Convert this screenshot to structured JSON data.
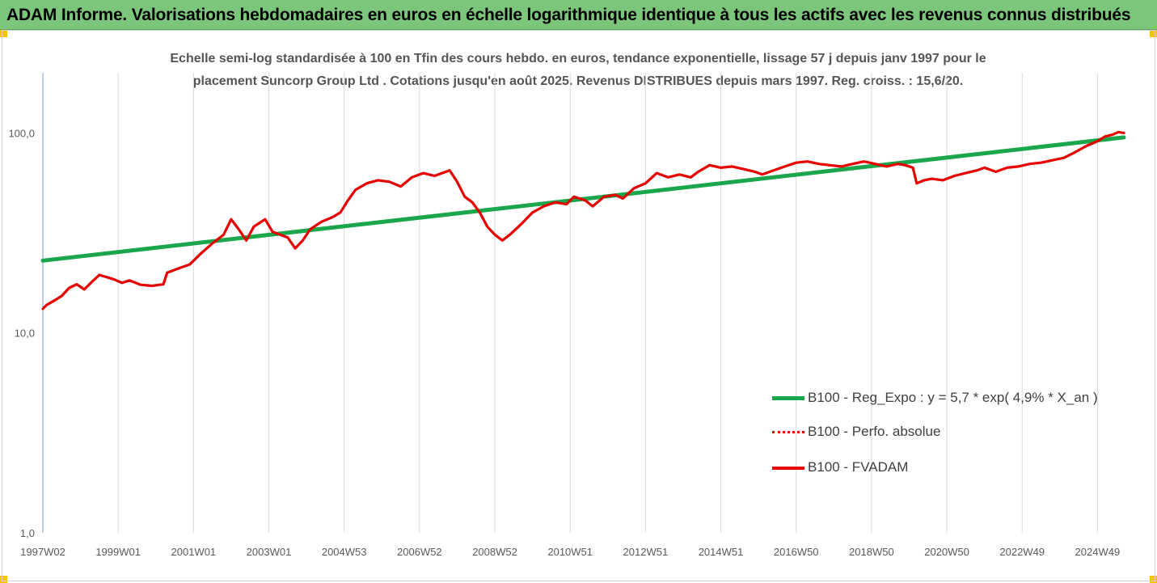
{
  "banner": {
    "title": "ADAM Informe. Valorisations hebdomadaires en euros en échelle logarithmique identique à tous les actifs avec les revenus connus distribués"
  },
  "colors": {
    "banner_bg": "#7bc67a",
    "corner_accent": "#f5c400",
    "trend_green": "#1aa64a",
    "fvadam_red": "#e60000",
    "grid": "#d9d9d9"
  },
  "chart_data": {
    "type": "line",
    "title_line1": "Echelle semi-log standardisée à 100 en Tfin des cours hebdo. en euros, tendance exponentielle, lissage 57 j depuis janv 1997 pour le",
    "title_line2": "placement Suncorp Group Ltd . Cotations jusqu'en août 2025. Revenus DISTRIBUES depuis mars 1997. Reg. croiss. : 15,6/20.",
    "y_scale": "log",
    "ylim": [
      1,
      200
    ],
    "y_ticks": [
      {
        "value": 1,
        "label": "1,0"
      },
      {
        "value": 10,
        "label": "10,0"
      },
      {
        "value": 100,
        "label": "100,0"
      }
    ],
    "xlim": [
      1997.0,
      2025.7
    ],
    "x_ticks": [
      {
        "x": 1997.0,
        "label": "1997W02"
      },
      {
        "x": 1999.0,
        "label": "1999W01"
      },
      {
        "x": 2001.0,
        "label": "2001W01"
      },
      {
        "x": 2003.0,
        "label": "2003W01"
      },
      {
        "x": 2005.0,
        "label": "2004W53"
      },
      {
        "x": 2007.0,
        "label": "2006W52"
      },
      {
        "x": 2009.0,
        "label": "2008W52"
      },
      {
        "x": 2011.0,
        "label": "2010W51"
      },
      {
        "x": 2013.0,
        "label": "2012W51"
      },
      {
        "x": 2015.0,
        "label": "2014W51"
      },
      {
        "x": 2017.0,
        "label": "2016W50"
      },
      {
        "x": 2019.0,
        "label": "2018W50"
      },
      {
        "x": 2021.0,
        "label": "2020W50"
      },
      {
        "x": 2023.0,
        "label": "2022W49"
      },
      {
        "x": 2025.0,
        "label": "2024W49"
      }
    ],
    "grid": "vertical",
    "legend_position": "bottom-right",
    "series": [
      {
        "name": "B100 - Reg_Expo : y = 5,7 * exp( 4,9% *  X_an )",
        "style": "solid-thick",
        "color": "#1aa64a",
        "points": [
          [
            1997.0,
            23.0
          ],
          [
            2025.7,
            95.0
          ]
        ]
      },
      {
        "name": "B100 - Perfo. absolue",
        "style": "dotted",
        "color": "#e60000",
        "points": []
      },
      {
        "name": "B100 - FVADAM",
        "style": "solid",
        "color": "#e60000",
        "points": [
          [
            1997.0,
            13.2
          ],
          [
            1997.1,
            13.8
          ],
          [
            1997.3,
            14.5
          ],
          [
            1997.5,
            15.3
          ],
          [
            1997.7,
            16.8
          ],
          [
            1997.9,
            17.5
          ],
          [
            1998.1,
            16.5
          ],
          [
            1998.3,
            18.0
          ],
          [
            1998.5,
            19.5
          ],
          [
            1998.7,
            19.0
          ],
          [
            1998.9,
            18.5
          ],
          [
            1999.1,
            17.8
          ],
          [
            1999.3,
            18.3
          ],
          [
            1999.6,
            17.4
          ],
          [
            1999.9,
            17.2
          ],
          [
            2000.2,
            17.5
          ],
          [
            2000.3,
            20.0
          ],
          [
            2000.6,
            21.0
          ],
          [
            2000.9,
            22.0
          ],
          [
            2001.2,
            25.0
          ],
          [
            2001.5,
            28.0
          ],
          [
            2001.8,
            31.0
          ],
          [
            2002.0,
            37.0
          ],
          [
            2002.2,
            33.0
          ],
          [
            2002.4,
            29.0
          ],
          [
            2002.6,
            34.0
          ],
          [
            2002.9,
            37.0
          ],
          [
            2003.1,
            32.0
          ],
          [
            2003.3,
            31.0
          ],
          [
            2003.5,
            30.0
          ],
          [
            2003.7,
            26.5
          ],
          [
            2003.9,
            29.0
          ],
          [
            2004.1,
            33.0
          ],
          [
            2004.4,
            36.0
          ],
          [
            2004.7,
            38.0
          ],
          [
            2004.9,
            40.0
          ],
          [
            2005.1,
            46.0
          ],
          [
            2005.3,
            52.0
          ],
          [
            2005.6,
            56.0
          ],
          [
            2005.9,
            58.0
          ],
          [
            2006.2,
            57.0
          ],
          [
            2006.5,
            54.0
          ],
          [
            2006.8,
            60.0
          ],
          [
            2007.1,
            63.0
          ],
          [
            2007.4,
            61.0
          ],
          [
            2007.6,
            63.0
          ],
          [
            2007.8,
            65.0
          ],
          [
            2008.0,
            57.0
          ],
          [
            2008.2,
            48.0
          ],
          [
            2008.4,
            45.0
          ],
          [
            2008.6,
            40.0
          ],
          [
            2008.8,
            34.0
          ],
          [
            2009.0,
            31.0
          ],
          [
            2009.2,
            29.0
          ],
          [
            2009.4,
            31.0
          ],
          [
            2009.7,
            35.0
          ],
          [
            2010.0,
            40.0
          ],
          [
            2010.3,
            43.0
          ],
          [
            2010.6,
            45.0
          ],
          [
            2010.9,
            44.0
          ],
          [
            2011.1,
            48.0
          ],
          [
            2011.4,
            46.0
          ],
          [
            2011.6,
            43.0
          ],
          [
            2011.9,
            48.0
          ],
          [
            2012.2,
            49.0
          ],
          [
            2012.4,
            47.0
          ],
          [
            2012.7,
            53.0
          ],
          [
            2013.0,
            56.0
          ],
          [
            2013.3,
            63.0
          ],
          [
            2013.6,
            60.0
          ],
          [
            2013.9,
            62.0
          ],
          [
            2014.2,
            60.0
          ],
          [
            2014.4,
            64.0
          ],
          [
            2014.7,
            69.0
          ],
          [
            2015.0,
            67.0
          ],
          [
            2015.3,
            68.0
          ],
          [
            2015.6,
            66.0
          ],
          [
            2015.9,
            64.0
          ],
          [
            2016.1,
            62.0
          ],
          [
            2016.4,
            65.0
          ],
          [
            2016.7,
            68.0
          ],
          [
            2017.0,
            71.0
          ],
          [
            2017.3,
            72.0
          ],
          [
            2017.6,
            70.0
          ],
          [
            2017.9,
            69.0
          ],
          [
            2018.2,
            68.0
          ],
          [
            2018.5,
            70.0
          ],
          [
            2018.8,
            72.0
          ],
          [
            2019.1,
            70.0
          ],
          [
            2019.4,
            68.0
          ],
          [
            2019.7,
            70.0
          ],
          [
            2019.9,
            69.0
          ],
          [
            2020.1,
            67.0
          ],
          [
            2020.2,
            56.0
          ],
          [
            2020.4,
            58.0
          ],
          [
            2020.6,
            59.0
          ],
          [
            2020.9,
            58.0
          ],
          [
            2021.2,
            61.0
          ],
          [
            2021.5,
            63.0
          ],
          [
            2021.8,
            65.0
          ],
          [
            2022.0,
            67.0
          ],
          [
            2022.3,
            64.0
          ],
          [
            2022.6,
            67.0
          ],
          [
            2022.9,
            68.0
          ],
          [
            2023.2,
            70.0
          ],
          [
            2023.5,
            71.0
          ],
          [
            2023.8,
            73.0
          ],
          [
            2024.1,
            75.0
          ],
          [
            2024.4,
            80.0
          ],
          [
            2024.7,
            86.0
          ],
          [
            2025.0,
            91.0
          ],
          [
            2025.2,
            96.0
          ],
          [
            2025.4,
            98.0
          ],
          [
            2025.55,
            101.0
          ],
          [
            2025.7,
            100.0
          ]
        ]
      }
    ]
  }
}
